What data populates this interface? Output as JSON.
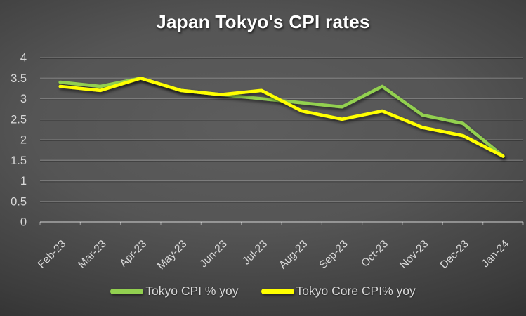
{
  "chart_data": {
    "type": "line",
    "title": "Japan Tokyo's CPI rates",
    "categories": [
      "Feb-23",
      "Mar-23",
      "Apr-23",
      "May-23",
      "Jun-23",
      "Jul-23",
      "Aug-23",
      "Sep-23",
      "Oct-23",
      "Nov-23",
      "Dec-23",
      "Jan-24"
    ],
    "series": [
      {
        "name": "Tokyo CPI % yoy",
        "color": "#92d050",
        "values": [
          3.4,
          3.3,
          3.5,
          3.2,
          3.1,
          3.0,
          2.9,
          2.8,
          3.3,
          2.6,
          2.4,
          1.6
        ]
      },
      {
        "name": "Tokyo Core CPI% yoy",
        "color": "#ffff00",
        "values": [
          3.3,
          3.2,
          3.5,
          3.2,
          3.1,
          3.2,
          2.7,
          2.5,
          2.7,
          2.3,
          2.1,
          1.6
        ]
      }
    ],
    "xlabel": "",
    "ylabel": "",
    "ylim": [
      0,
      4
    ],
    "ytick_labels": [
      "0",
      "0.5",
      "1",
      "1.5",
      "2",
      "2.5",
      "3",
      "3.5",
      "4"
    ],
    "grid": true,
    "legend_position": "bottom"
  },
  "colors": {
    "background_center": "#5a5a5a",
    "background_edge": "#1e1e1e",
    "axis_text": "#d9d9d9",
    "title_text": "#ffffff",
    "gridline": "#767676"
  }
}
